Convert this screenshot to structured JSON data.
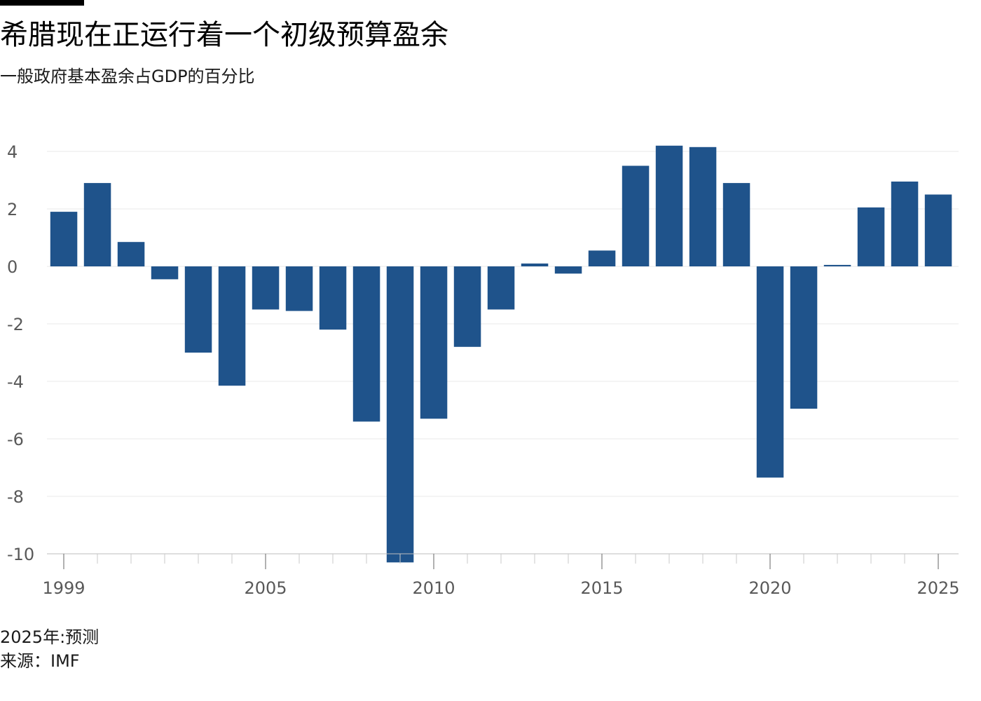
{
  "header": {
    "title": "希腊现在正运行着一个初级预算盈余",
    "subtitle": "一般政府基本盈余占GDP的百分比"
  },
  "footer": {
    "note": "2025年:预测",
    "source": "来源：IMF"
  },
  "colors": {
    "bar": "#1f538b",
    "grid": "#e9e9e9",
    "axis": "#666666",
    "tick_label": "#595959"
  },
  "chart_data": {
    "type": "bar",
    "title": "希腊现在正运行着一个初级预算盈余",
    "subtitle": "一般政府基本盈余占GDP的百分比",
    "xlabel": "",
    "ylabel": "",
    "ylim": [
      -10.3,
      4.2
    ],
    "yticks": [
      4,
      2,
      0,
      -2,
      -4,
      -6,
      -8,
      -10
    ],
    "ytick_labels": [
      "4",
      "2",
      "0",
      "-2",
      "-4",
      "-6",
      "-8",
      "-10"
    ],
    "xtick_labels": [
      "1999",
      "2005",
      "2010",
      "2015",
      "2020",
      "2025"
    ],
    "grid": true,
    "categories": [
      1999,
      2000,
      2001,
      2002,
      2003,
      2004,
      2005,
      2006,
      2007,
      2008,
      2009,
      2010,
      2011,
      2012,
      2013,
      2014,
      2015,
      2016,
      2017,
      2018,
      2019,
      2020,
      2021,
      2022,
      2023,
      2024,
      2025
    ],
    "values": [
      1.9,
      2.9,
      0.85,
      -0.45,
      -3.0,
      -4.15,
      -1.5,
      -1.55,
      -2.2,
      -5.4,
      -10.3,
      -5.3,
      -2.8,
      -1.5,
      0.1,
      -0.25,
      0.55,
      3.5,
      4.2,
      4.15,
      2.9,
      -7.35,
      -4.95,
      0.05,
      2.05,
      2.95,
      2.5
    ]
  }
}
